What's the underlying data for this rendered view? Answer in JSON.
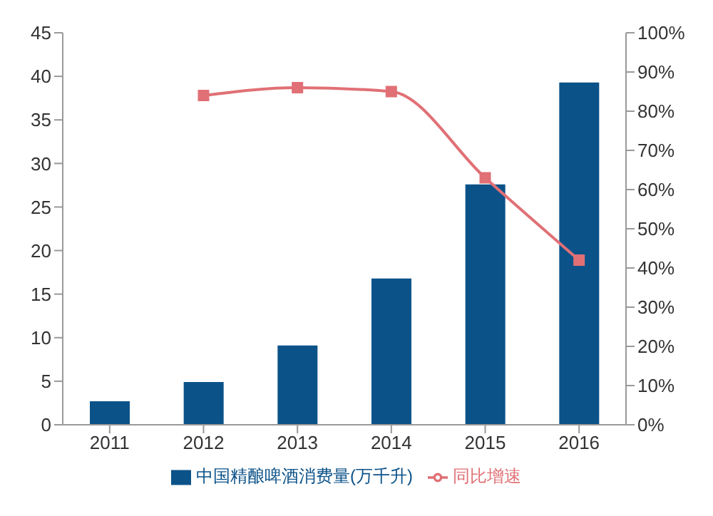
{
  "chart_data": {
    "type": "bar",
    "categories": [
      "2011",
      "2012",
      "2013",
      "2014",
      "2015",
      "2016"
    ],
    "series": [
      {
        "name": "中国精酿啤酒消费量(万千升)",
        "color": "#0b5289",
        "values": [
          2.7,
          4.9,
          9.1,
          16.8,
          27.6,
          39.3
        ]
      },
      {
        "name": "同比增速",
        "type": "line",
        "axis": "y2",
        "color": "#e07075",
        "values": [
          null,
          84,
          86,
          85,
          63,
          42
        ]
      }
    ],
    "ylim": [
      0,
      45
    ],
    "yticks": [
      0,
      5,
      10,
      15,
      20,
      25,
      30,
      35,
      40,
      45
    ],
    "y2lim": [
      0,
      100
    ],
    "y2ticks": [
      {
        "value": 0,
        "label": "0%"
      },
      {
        "value": 10,
        "label": "10%"
      },
      {
        "value": 20,
        "label": "20%"
      },
      {
        "value": 30,
        "label": "30%"
      },
      {
        "value": 40,
        "label": "40%"
      },
      {
        "value": 50,
        "label": "50%"
      },
      {
        "value": 60,
        "label": "60%"
      },
      {
        "value": 70,
        "label": "70%"
      },
      {
        "value": 80,
        "label": "80%"
      },
      {
        "value": 90,
        "label": "90%"
      },
      {
        "value": 100,
        "label": "100%"
      }
    ],
    "marker": "square",
    "legend": "bottom",
    "grid": false
  }
}
